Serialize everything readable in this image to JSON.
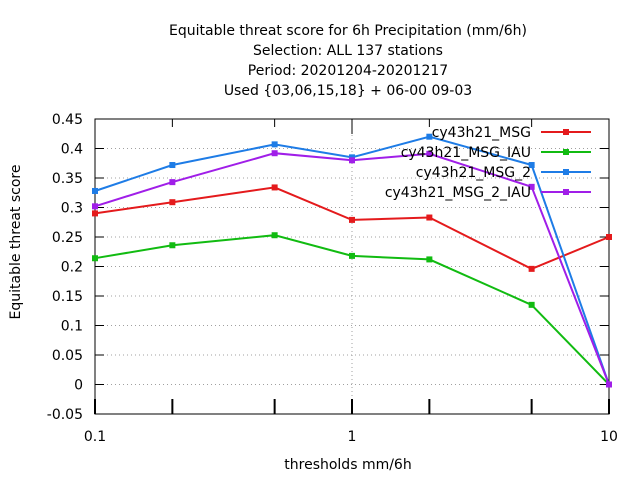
{
  "chart_data": {
    "type": "line",
    "title_lines": [
      "Equitable threat score  for 6h Precipitation (mm/6h)",
      "Selection: ALL    137 stations",
      "Period: 20201204-20201217",
      "Used {03,06,15,18} + 06-00 09-03"
    ],
    "xlabel": "thresholds mm/6h",
    "ylabel": "Equitable threat score",
    "x_scale": "log",
    "xlim": [
      0.1,
      10
    ],
    "ylim": [
      -0.05,
      0.45
    ],
    "x_tick_labels": [
      "0.1",
      "1",
      "10"
    ],
    "y_tick_labels": [
      "-0.05",
      "0",
      "0.05",
      "0.1",
      "0.15",
      "0.2",
      "0.25",
      "0.3",
      "0.35",
      "0.4",
      "0.45"
    ],
    "x": [
      0.1,
      0.2,
      0.5,
      1,
      2,
      5,
      10
    ],
    "grid": "vertical and horizontal grid lines",
    "legend_position": "top-right",
    "series": [
      {
        "name": "cy43h21_MSG",
        "color": "#e41a1c",
        "values": [
          0.29,
          0.309,
          0.334,
          0.279,
          0.283,
          0.196,
          0.25
        ]
      },
      {
        "name": "cy43h21_MSG_IAU",
        "color": "#11bb11",
        "values": [
          0.214,
          0.236,
          0.253,
          0.218,
          0.212,
          0.135,
          0.0
        ]
      },
      {
        "name": "cy43h21_MSG_2",
        "color": "#1e7ce6",
        "values": [
          0.328,
          0.372,
          0.407,
          0.385,
          0.42,
          0.372,
          0.0
        ]
      },
      {
        "name": "cy43h21_MSG_2_IAU",
        "color": "#a01ee8",
        "values": [
          0.302,
          0.343,
          0.392,
          0.38,
          0.391,
          0.335,
          0.0
        ]
      }
    ]
  }
}
